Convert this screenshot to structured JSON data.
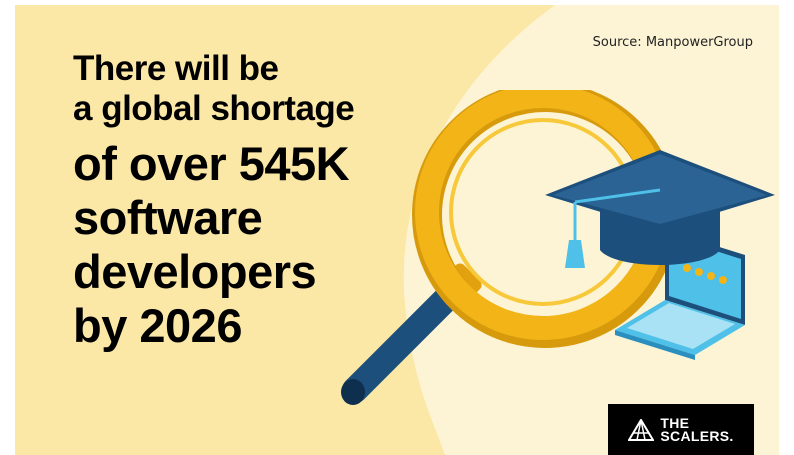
{
  "headline": {
    "line1": "There will be",
    "line2": "a global shortage",
    "line3": "of over 545K",
    "line4": "software",
    "line5": "developers",
    "line6": "by 2026"
  },
  "source": "Source: ManpowerGroup",
  "logo": {
    "line1": "THE",
    "line2": "SCALERS."
  },
  "colors": {
    "background": "#fbe8a6",
    "blob": "#fdf4d6",
    "magnifier_ring": "#f2b417",
    "magnifier_handle": "#1d4f7c",
    "cap": "#1d4f7c",
    "tassel": "#4fc0e8",
    "laptop": "#4fc0e8",
    "text": "#000000"
  },
  "icons": [
    "magnifying-glass-icon",
    "graduation-cap-icon",
    "laptop-icon",
    "scalers-logo-icon"
  ]
}
